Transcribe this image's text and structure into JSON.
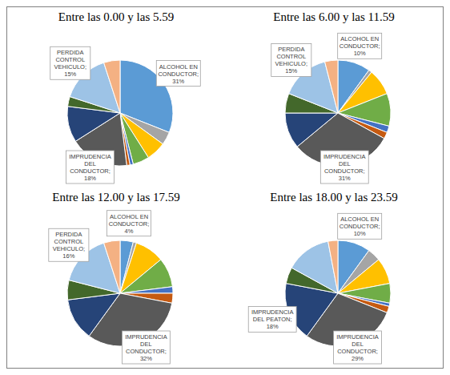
{
  "chart_data": [
    {
      "type": "pie",
      "title": "Entre las 0.00 y las 5.59",
      "categories": [
        "ALCOHOL EN CONDUCTOR;",
        null,
        null,
        null,
        null,
        null,
        "IMPRUDENCIA DEL CONDUCTOR;",
        null,
        null,
        "PERDIDA CONTROL VEHICULO;",
        null
      ],
      "values": [
        31,
        4,
        6,
        5,
        1,
        1,
        18,
        11,
        3,
        15,
        5
      ],
      "value_labels": [
        "31%",
        null,
        null,
        null,
        null,
        null,
        "18%",
        null,
        null,
        "15%",
        null
      ],
      "colors": [
        "#5b9bd5",
        "#a5a5a5",
        "#ffc000",
        "#70ad47",
        "#4472c4",
        "#c55a11",
        "#595959",
        "#264478",
        "#43682b",
        "#9dc3e6",
        "#f4b183"
      ],
      "data_labels": true
    },
    {
      "type": "pie",
      "title": "Entre las 6.00 y las 11.59",
      "categories": [
        "ALCOHOL EN CONDUCTOR;",
        null,
        null,
        null,
        null,
        null,
        "IMPRUDENCIA DEL CONDUCTOR;",
        null,
        null,
        "PERDIDA CONTROL VEHICULO;",
        null
      ],
      "values": [
        10,
        1,
        8,
        10,
        2,
        2,
        31,
        11,
        6,
        15,
        4
      ],
      "value_labels": [
        "10%",
        null,
        null,
        null,
        null,
        null,
        "31%",
        null,
        null,
        "15%",
        null
      ],
      "colors": [
        "#5b9bd5",
        "#a5a5a5",
        "#ffc000",
        "#70ad47",
        "#4472c4",
        "#c55a11",
        "#595959",
        "#264478",
        "#43682b",
        "#9dc3e6",
        "#f4b183"
      ],
      "data_labels": true
    },
    {
      "type": "pie",
      "title": "Entre las 12.00 y las 17.59",
      "categories": [
        "ALCOHOL EN CONDUCTOR;",
        null,
        null,
        null,
        null,
        null,
        "IMPRUDENCIA DEL CONDUCTOR;",
        null,
        null,
        "PERDIDA CONTROL VEHICULO;",
        null
      ],
      "values": [
        4,
        1,
        9,
        9,
        2,
        3,
        32,
        13,
        6,
        16,
        5
      ],
      "value_labels": [
        "4%",
        null,
        null,
        null,
        null,
        null,
        "32%",
        null,
        null,
        "16%",
        null
      ],
      "colors": [
        "#5b9bd5",
        "#a5a5a5",
        "#ffc000",
        "#70ad47",
        "#4472c4",
        "#c55a11",
        "#595959",
        "#264478",
        "#43682b",
        "#9dc3e6",
        "#f4b183"
      ],
      "data_labels": true
    },
    {
      "type": "pie",
      "title": "Entre las 18.00 y las 23.59",
      "categories": [
        "ALCOHOL EN CONDUCTOR;",
        null,
        null,
        null,
        null,
        null,
        "IMPRUDENCIA DEL CONDUCTOR;",
        "IMPRUDENCIA DEL PEATON;",
        null,
        null,
        null
      ],
      "values": [
        10,
        4,
        8,
        6,
        1,
        2,
        29,
        18,
        5,
        14,
        3
      ],
      "value_labels": [
        "10%",
        null,
        null,
        null,
        null,
        null,
        "29%",
        "18%",
        null,
        null,
        null
      ],
      "colors": [
        "#5b9bd5",
        "#a5a5a5",
        "#ffc000",
        "#70ad47",
        "#4472c4",
        "#c55a11",
        "#595959",
        "#264478",
        "#43682b",
        "#9dc3e6",
        "#f4b183"
      ],
      "data_labels": true
    }
  ]
}
